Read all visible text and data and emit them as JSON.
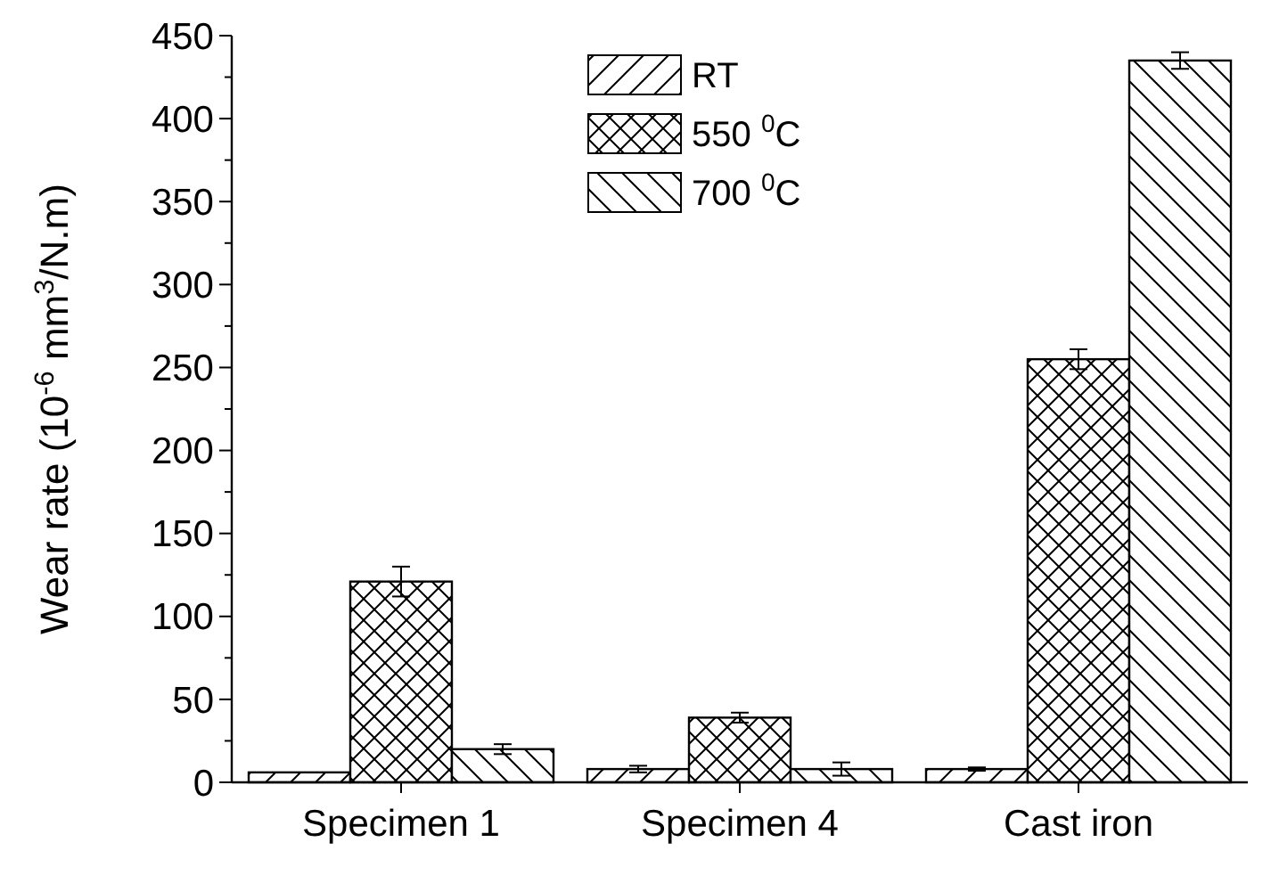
{
  "chart_data": {
    "type": "bar",
    "ylabel": "Wear rate (10$^{-6}$ mm$^{3}$/N.m)",
    "categories": [
      "Specimen 1",
      "Specimen 4",
      "Cast iron"
    ],
    "series": [
      {
        "name": "RT",
        "color": "#000000",
        "values": [
          6,
          8,
          8
        ],
        "errors": [
          null,
          2,
          1
        ]
      },
      {
        "name": "550 $^{0}$C",
        "color": "#000000",
        "values": [
          121,
          39,
          255
        ],
        "errors": [
          9,
          3,
          6
        ]
      },
      {
        "name": "700 $^{0}$C",
        "color": "#000000",
        "values": [
          20,
          8,
          435
        ],
        "errors": [
          3,
          4,
          5
        ]
      }
    ],
    "ylim": [
      0,
      450
    ],
    "yticks": [
      0,
      {
        "value": 25,
        "label": null
      },
      50,
      {
        "value": 75,
        "label": null
      },
      100,
      {
        "value": 125,
        "label": null
      },
      150,
      {
        "value": 175,
        "label": null
      },
      200,
      {
        "value": 225,
        "label": null
      },
      250,
      {
        "value": 275,
        "label": null
      },
      300,
      {
        "value": 325,
        "label": null
      },
      350,
      {
        "value": 375,
        "label": null
      },
      400,
      {
        "value": 425,
        "label": null
      },
      450
    ],
    "legend": "top"
  }
}
